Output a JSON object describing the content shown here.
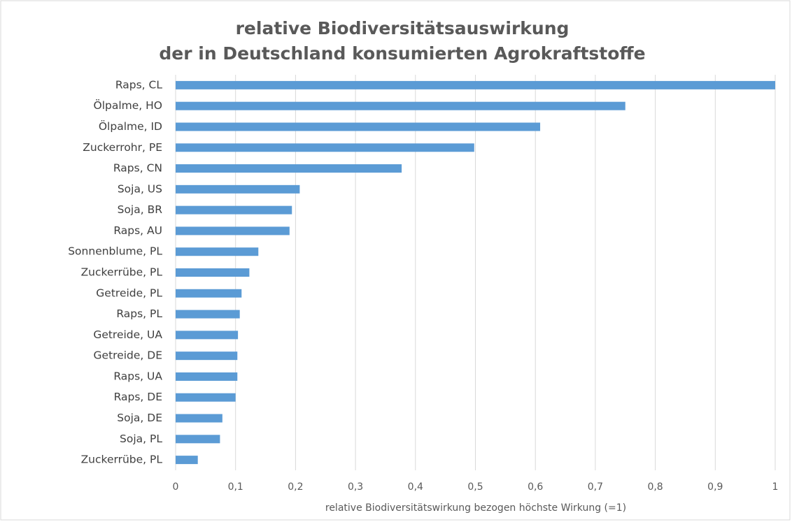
{
  "chart_data": {
    "type": "bar",
    "orientation": "horizontal",
    "title": [
      "relative Biodiversitätsauswirkung",
      "der in Deutschland konsumierten Agrokraftstoffe"
    ],
    "xlabel": "relative Biodiversitätswirkung  bezogen höchste Wirkung (=1)",
    "categories": [
      "Raps, CL",
      "Ölpalme, HO",
      "Ölpalme, ID",
      "Zuckerrohr, PE",
      "Raps, CN",
      "Soja, US",
      "Soja, BR",
      "Raps, AU",
      "Sonnenblume, PL",
      "Zuckerrübe, PL",
      "Getreide, PL",
      "Raps, PL",
      "Getreide, UA",
      "Getreide, DE",
      "Raps, UA",
      "Raps, DE",
      "Soja, DE",
      "Soja, PL",
      "Zuckerrübe, PL"
    ],
    "values": [
      1.0,
      0.75,
      0.608,
      0.498,
      0.377,
      0.207,
      0.194,
      0.19,
      0.138,
      0.123,
      0.11,
      0.107,
      0.104,
      0.103,
      0.103,
      0.1,
      0.078,
      0.074,
      0.037
    ],
    "color": "#5b9bd5",
    "xlim": [
      0,
      1
    ],
    "xticks": [
      0,
      {
        "value": 0.1,
        "label": "0,1"
      },
      {
        "value": 0.2,
        "label": "0,2"
      },
      {
        "value": 0.3,
        "label": "0,3"
      },
      {
        "value": 0.4,
        "label": "0,4"
      },
      {
        "value": 0.5,
        "label": "0,5"
      },
      {
        "value": 0.6,
        "label": "0,6"
      },
      {
        "value": 0.7,
        "label": "0,7"
      },
      {
        "value": 0.8,
        "label": "0,8"
      },
      {
        "value": 0.9,
        "label": "0,9"
      },
      1
    ],
    "grid": true
  }
}
